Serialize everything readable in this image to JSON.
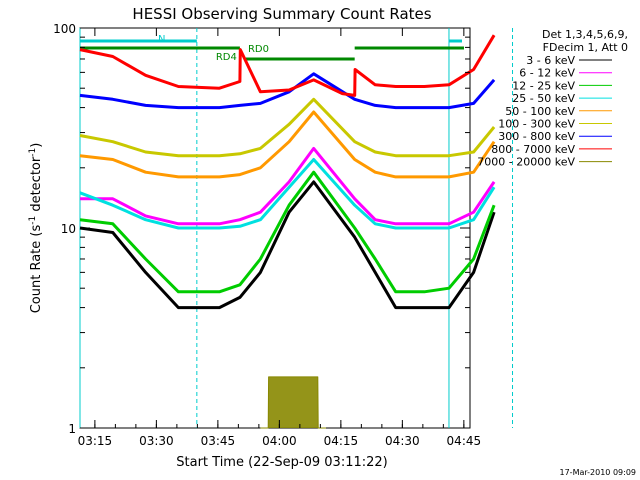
{
  "chart_data": {
    "type": "line",
    "title": "HESSI Observing Summary Count Rates",
    "xlabel": "Start Time (22-Sep-09 03:11:22)",
    "ylabel_main": "Count Rate (s",
    "ylabel_sup": "-1",
    "ylabel_end": " detector",
    "ylabel_sup2": "-1",
    "ylabel_close": ")",
    "y_scale": "log",
    "ylim": [
      1,
      100
    ],
    "x_range_min": [
      4,
      97
    ],
    "x_ticks": [
      {
        "min": 15,
        "label": "03:15"
      },
      {
        "min": 30,
        "label": "03:30"
      },
      {
        "min": 45,
        "label": "03:45"
      },
      {
        "min": 60,
        "label": "04:00"
      },
      {
        "min": 75,
        "label": "04:15"
      },
      {
        "min": 90,
        "label": "04:30"
      },
      {
        "min": 105,
        "label": "04:45"
      }
    ],
    "y_ticks": [
      {
        "value": 1,
        "label": "1"
      },
      {
        "value": 10,
        "label": "10"
      },
      {
        "value": 100,
        "label": "100"
      }
    ],
    "legend": {
      "header1": "Det 1,3,4,5,6,9,",
      "header2": "FDecim 1, Att 0",
      "placement": "right"
    },
    "series": [
      {
        "name": "3 - 6 keV",
        "color": "#000000",
        "x": [
          0,
          8,
          16,
          24,
          34,
          39,
          44,
          51,
          57,
          67,
          72,
          77,
          84,
          90,
          96,
          101
        ],
        "y": [
          10,
          9.5,
          6,
          4,
          4,
          4.5,
          6,
          12,
          17,
          9,
          6,
          4,
          4,
          4,
          6,
          12
        ]
      },
      {
        "name": "6 - 12 keV",
        "color": "#ff00ff",
        "x": [
          0,
          8,
          16,
          24,
          34,
          39,
          44,
          51,
          57,
          67,
          72,
          77,
          84,
          90,
          96,
          101
        ],
        "y": [
          14,
          14,
          11.5,
          10.5,
          10.5,
          11,
          12,
          17,
          25,
          14,
          11,
          10.5,
          10.5,
          10.5,
          12,
          17
        ]
      },
      {
        "name": "12 - 25 keV",
        "color": "#00cc00",
        "x": [
          0,
          8,
          16,
          24,
          34,
          39,
          44,
          51,
          57,
          67,
          72,
          77,
          84,
          90,
          96,
          101
        ],
        "y": [
          11,
          10.5,
          7,
          4.8,
          4.8,
          5.2,
          7,
          13,
          19,
          10,
          7,
          4.8,
          4.8,
          5,
          7,
          13
        ]
      },
      {
        "name": "25 - 50 keV",
        "color": "#00e0e0",
        "x": [
          0,
          8,
          16,
          24,
          34,
          39,
          44,
          51,
          57,
          67,
          72,
          77,
          84,
          90,
          96,
          101
        ],
        "y": [
          15,
          13,
          11,
          10,
          10,
          10.2,
          11,
          16,
          22,
          13,
          10.5,
          10,
          10,
          10,
          11,
          16
        ]
      },
      {
        "name": "50 - 100 keV",
        "color": "#ff9900",
        "x": [
          0,
          8,
          16,
          24,
          34,
          39,
          44,
          51,
          57,
          67,
          72,
          77,
          84,
          90,
          96,
          101
        ],
        "y": [
          23,
          22,
          19,
          18,
          18,
          18.5,
          20,
          27,
          38,
          22,
          19,
          18,
          18,
          18,
          19,
          27
        ]
      },
      {
        "name": "100 - 300 keV",
        "color": "#c8c800",
        "x": [
          0,
          8,
          16,
          24,
          34,
          39,
          44,
          51,
          57,
          67,
          72,
          77,
          84,
          90,
          96,
          101
        ],
        "y": [
          29,
          27,
          24,
          23,
          23,
          23.5,
          25,
          33,
          44,
          27,
          24,
          23,
          23,
          23,
          24,
          32
        ]
      },
      {
        "name": "300 - 800 keV",
        "color": "#0000ff",
        "x": [
          0,
          8,
          16,
          24,
          34,
          39,
          44,
          51,
          57,
          67,
          72,
          77,
          84,
          90,
          96,
          101
        ],
        "y": [
          46,
          44,
          41,
          40,
          40,
          41,
          42,
          48,
          59,
          44,
          41,
          40,
          40,
          40,
          42,
          55
        ]
      },
      {
        "name": "800 - 7000 keV",
        "color": "#ff0000",
        "x": [
          0,
          8,
          16,
          24,
          34,
          39,
          39.1,
          44,
          51,
          57,
          64,
          67,
          67.1,
          72,
          77,
          84,
          90,
          96,
          101
        ],
        "y": [
          78,
          72,
          58,
          51,
          50,
          54,
          78,
          48,
          49,
          55,
          47,
          46,
          62,
          52,
          51,
          51,
          52,
          62,
          92
        ]
      },
      {
        "name": "7000 - 20000 keV",
        "color": "#888800",
        "x": [
          44,
          45.9,
          46,
          51,
          56,
          58,
          58.1,
          60
        ],
        "y": [
          1,
          1,
          1.8,
          1.8,
          1.8,
          1.8,
          1,
          1
        ]
      }
    ],
    "annotations": {
      "att_states": [
        {
          "label": "RD4",
          "x_min": 0,
          "x_max": 39
        },
        {
          "label": "RD0",
          "x_min": 40,
          "x_max": 67
        }
      ],
      "night_label": "N",
      "saa_label": "N",
      "footer_date": "17-Mar-2010 09:09"
    }
  }
}
